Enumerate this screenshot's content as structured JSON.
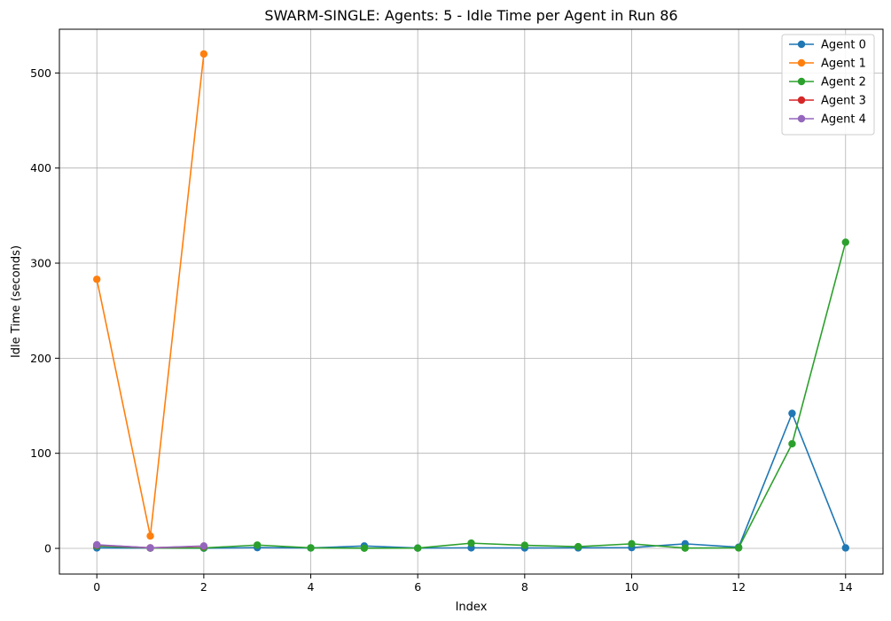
{
  "chart_data": {
    "type": "line",
    "title": "SWARM-SINGLE: Agents: 5 - Idle Time per Agent in Run 86",
    "xlabel": "Index",
    "ylabel": "Idle Time (seconds)",
    "xlim": [
      -0.7,
      14.7
    ],
    "ylim": [
      -27,
      546
    ],
    "xticks": [
      0,
      2,
      4,
      6,
      8,
      10,
      12,
      14
    ],
    "yticks": [
      0,
      100,
      200,
      300,
      400,
      500
    ],
    "grid": true,
    "legend_position": "upper right",
    "series": [
      {
        "name": "Agent 0",
        "color": "#1f77b4",
        "x": [
          0,
          1,
          2,
          3,
          4,
          5,
          6,
          7,
          8,
          9,
          10,
          11,
          12,
          13,
          14
        ],
        "y": [
          0.5,
          0.3,
          0.2,
          0.8,
          0.4,
          2.5,
          0.3,
          0.6,
          0.4,
          0.5,
          0.8,
          4.8,
          1.2,
          142,
          0.5
        ]
      },
      {
        "name": "Agent 1",
        "color": "#ff7f0e",
        "x": [
          0,
          1,
          2
        ],
        "y": [
          283,
          13,
          520
        ]
      },
      {
        "name": "Agent 2",
        "color": "#2ca02c",
        "x": [
          0,
          1,
          2,
          3,
          4,
          5,
          6,
          7,
          8,
          9,
          10,
          11,
          12,
          13,
          14
        ],
        "y": [
          2.5,
          0.3,
          0.4,
          3.5,
          0.5,
          0.2,
          0.3,
          5.5,
          3.2,
          1.8,
          4.8,
          0.3,
          0.5,
          110,
          322
        ]
      },
      {
        "name": "Agent 3",
        "color": "#d62728",
        "x": [
          0,
          1,
          2
        ],
        "y": [
          3.5,
          0.5,
          2.2
        ]
      },
      {
        "name": "Agent 4",
        "color": "#9467bd",
        "x": [
          0,
          1,
          2
        ],
        "y": [
          3.8,
          0.5,
          2.5
        ]
      }
    ]
  }
}
